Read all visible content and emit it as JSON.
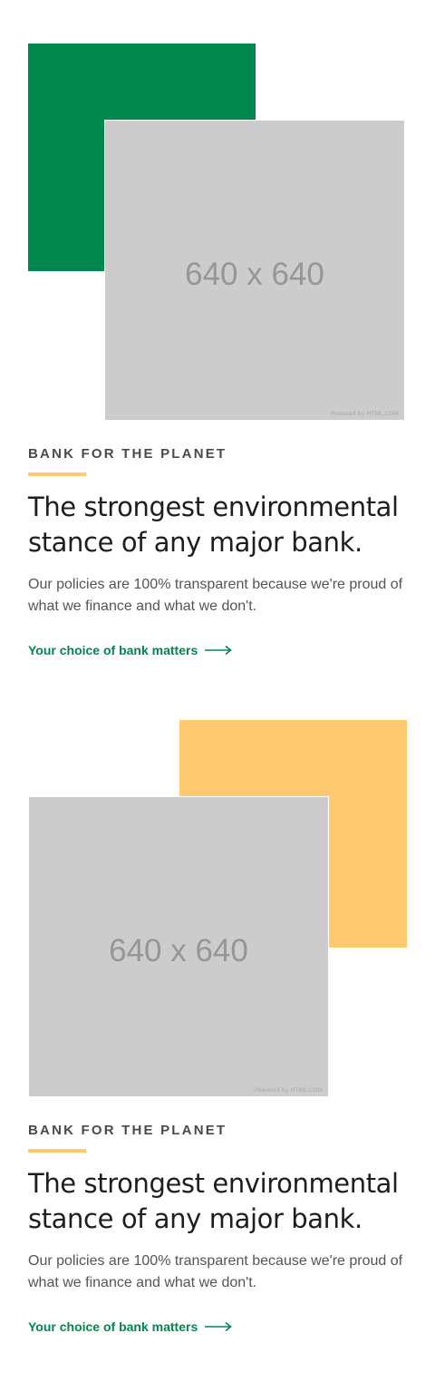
{
  "colors": {
    "green": "#00874f",
    "yellow": "#ffc970",
    "link": "#00874f"
  },
  "sections": [
    {
      "accent_color": "#00874f",
      "image": {
        "size_label": "640 x 640",
        "credit": "Powered by HTML.COM"
      },
      "eyebrow": "BANK FOR THE PLANET",
      "headline": "The strongest environmental stance of any major bank.",
      "body": "Our policies are 100% transparent because we're proud of what we finance and what we don't.",
      "cta_label": "Your choice of bank matters",
      "cta_icon": "arrow-right-icon"
    },
    {
      "accent_color": "#ffc970",
      "image": {
        "size_label": "640 x 640",
        "credit": "Powered by HTML.COM"
      },
      "eyebrow": "BANK FOR THE PLANET",
      "headline": "The strongest environmental stance of any major bank.",
      "body": "Our policies are 100% transparent because we're proud of what we finance and what we don't.",
      "cta_label": "Your choice of bank matters",
      "cta_icon": "arrow-right-icon"
    }
  ]
}
